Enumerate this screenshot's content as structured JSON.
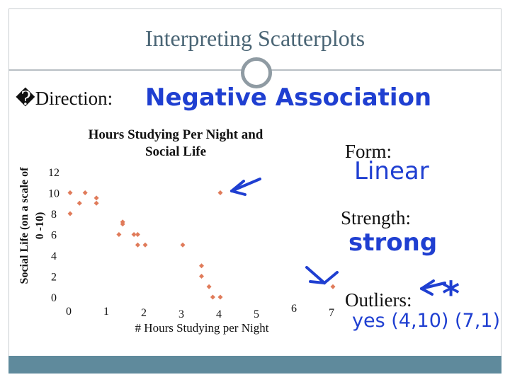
{
  "slide": {
    "title": "Interpreting Scatterplots",
    "bullet_glyph": "�",
    "direction_label": "Direction:",
    "form_label": "Form:",
    "strength_label": "Strength:",
    "outliers_label": "Outliers:"
  },
  "handwriting": {
    "direction": "Negative Association",
    "form": "Linear",
    "strength": "strong",
    "outliers": "yes (4,10) (7,1)",
    "star_note": "*",
    "ink_color": "#1f3fd1"
  },
  "chart_data": {
    "type": "scatter",
    "title_line1": "Hours Studying Per Night and",
    "title_line2": "Social Life",
    "xlabel": "# Hours Studying per Night",
    "ylabel_line1": "Social Life (on a scale of",
    "ylabel_line2": "0 -10)",
    "xlim": [
      0,
      7
    ],
    "ylim": [
      0,
      12
    ],
    "x_ticks": [
      "0",
      "1",
      "2",
      "3",
      "4",
      "5",
      "6",
      "7"
    ],
    "y_ticks": [
      "0",
      "2",
      "4",
      "6",
      "8",
      "10",
      "12"
    ],
    "grid": false,
    "marker_color": "#e07b5a",
    "points": [
      {
        "x": 0,
        "y": 10
      },
      {
        "x": 0,
        "y": 8
      },
      {
        "x": 0.25,
        "y": 9
      },
      {
        "x": 0.4,
        "y": 10
      },
      {
        "x": 0.7,
        "y": 9.5
      },
      {
        "x": 0.7,
        "y": 9
      },
      {
        "x": 1.4,
        "y": 7.2
      },
      {
        "x": 1.4,
        "y": 7
      },
      {
        "x": 1.3,
        "y": 6
      },
      {
        "x": 1.7,
        "y": 6
      },
      {
        "x": 1.8,
        "y": 6
      },
      {
        "x": 1.8,
        "y": 5
      },
      {
        "x": 2,
        "y": 5
      },
      {
        "x": 3,
        "y": 5
      },
      {
        "x": 3.5,
        "y": 3
      },
      {
        "x": 3.5,
        "y": 2
      },
      {
        "x": 3.7,
        "y": 1
      },
      {
        "x": 3.8,
        "y": 0
      },
      {
        "x": 4,
        "y": 0
      },
      {
        "x": 4,
        "y": 10
      },
      {
        "x": 7,
        "y": 1
      }
    ]
  }
}
